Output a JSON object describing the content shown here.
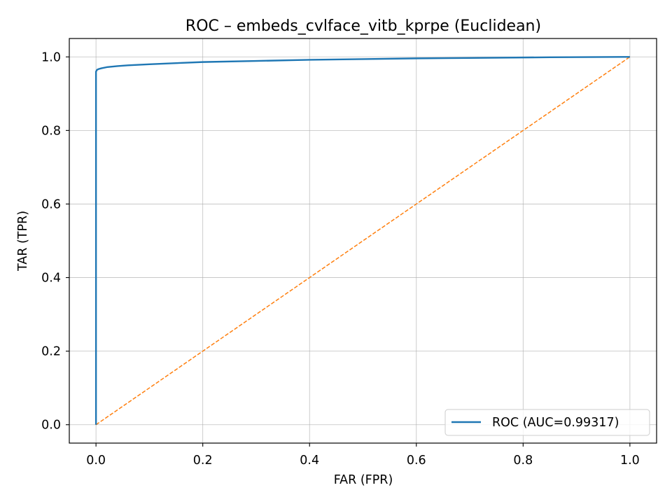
{
  "chart_data": {
    "type": "line",
    "title": "ROC – embeds_cvlface_vitb_kprpe (Euclidean)",
    "xlabel": "FAR (FPR)",
    "ylabel": "TAR (TPR)",
    "xlim": [
      -0.05,
      1.05
    ],
    "ylim": [
      -0.05,
      1.05
    ],
    "xticks": [
      0.0,
      0.2,
      0.4,
      0.6,
      0.8,
      1.0
    ],
    "yticks": [
      0.0,
      0.2,
      0.4,
      0.6,
      0.8,
      1.0
    ],
    "xtick_labels": [
      "0.0",
      "0.2",
      "0.4",
      "0.6",
      "0.8",
      "1.0"
    ],
    "ytick_labels": [
      "0.0",
      "0.2",
      "0.4",
      "0.6",
      "0.8",
      "1.0"
    ],
    "grid": true,
    "legend_position": "bottom-right",
    "series": [
      {
        "name": "ROC (AUC=0.99317)",
        "color": "#1f77b4",
        "style": "solid",
        "x": [
          0.0,
          0.0,
          0.002,
          0.005,
          0.01,
          0.02,
          0.04,
          0.06,
          0.1,
          0.15,
          0.2,
          0.3,
          0.4,
          0.5,
          0.6,
          0.7,
          0.85,
          1.0
        ],
        "y": [
          0.0,
          0.96,
          0.965,
          0.967,
          0.969,
          0.972,
          0.975,
          0.977,
          0.98,
          0.983,
          0.986,
          0.989,
          0.992,
          0.994,
          0.996,
          0.997,
          0.999,
          1.0
        ]
      },
      {
        "name": "",
        "color": "#ff7f0e",
        "style": "dashed",
        "x": [
          0.0,
          1.0
        ],
        "y": [
          0.0,
          1.0
        ]
      }
    ]
  }
}
